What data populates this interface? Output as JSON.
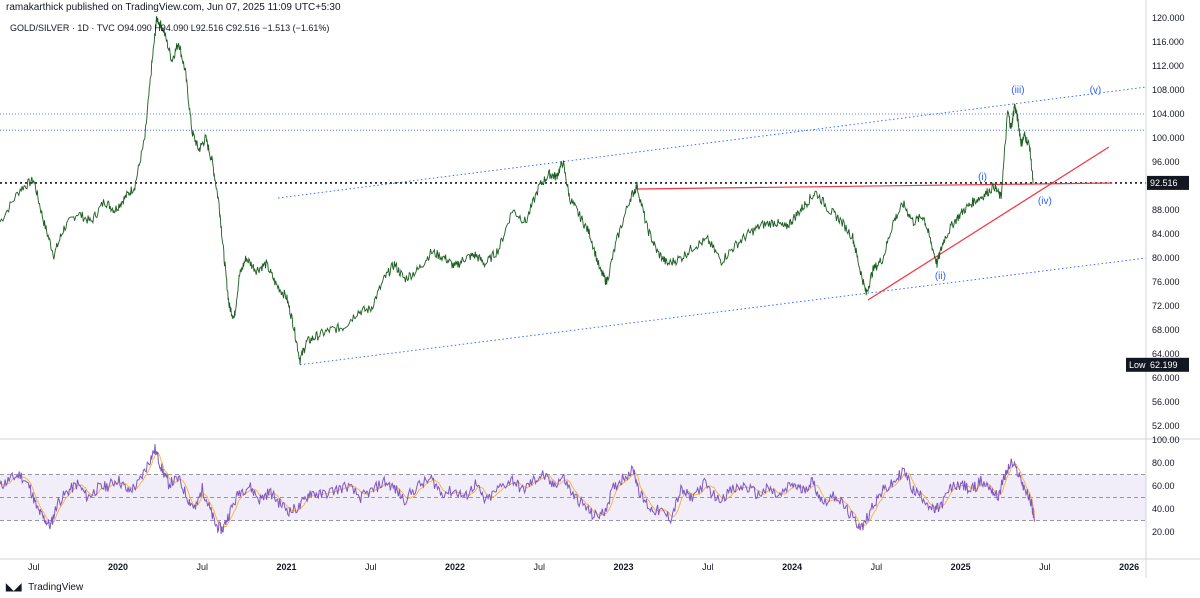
{
  "header": {
    "published": "ramakarthick published on TradingView.com, Jun 07, 2025 11:09 UTC+5:30",
    "legend": "GOLD/SILVER · 1D · TVC  O94.090  H94.090  L92.516  C92.516  −1.513 (−1.61%)"
  },
  "footer": {
    "logo_icon": "tradingview-logo-icon",
    "brand": "TradingView"
  },
  "chart_data": {
    "type": "line",
    "symbol": "GOLD/SILVER",
    "interval": "1D",
    "source": "TVC",
    "ohlc": {
      "open": 94.09,
      "high": 94.09,
      "low": 92.516,
      "close": 92.516,
      "change": -1.513,
      "change_pct": -1.61
    },
    "price_axis": {
      "min": 50,
      "max": 120,
      "ticks": [
        120,
        116,
        112,
        108,
        104,
        100,
        96,
        92,
        88,
        84,
        80,
        76,
        72,
        68,
        64,
        60,
        56,
        52
      ],
      "tick_labels": [
        "120.000",
        "116.000",
        "112.000",
        "108.000",
        "104.000",
        "100.000",
        "96.000",
        "92.000",
        "88.000",
        "84.000",
        "80.000",
        "76.000",
        "72.000",
        "68.000",
        "64.000",
        "60.000",
        "56.000",
        "52.000"
      ]
    },
    "time_axis": {
      "start": 2019.3,
      "end": 2026.1,
      "ticks": [
        2019.5,
        2020.0,
        2020.5,
        2021.0,
        2021.5,
        2022.0,
        2022.5,
        2023.0,
        2023.5,
        2024.0,
        2024.5,
        2025.0,
        2025.5,
        2026.0
      ],
      "labels": [
        "Jul",
        "2020",
        "Jul",
        "2021",
        "Jul",
        "2022",
        "Jul",
        "2023",
        "Jul",
        "2024",
        "Jul",
        "2025",
        "Jul",
        "2026"
      ]
    },
    "last_price": {
      "value": 92.516,
      "label": "92.516"
    },
    "low_marker": {
      "value": 62.199,
      "label": "62.199",
      "text": "Low"
    },
    "price_series": [
      [
        2019.3,
        86.0
      ],
      [
        2019.42,
        91.5
      ],
      [
        2019.5,
        93.0
      ],
      [
        2019.56,
        86.0
      ],
      [
        2019.62,
        80.5
      ],
      [
        2019.68,
        85.0
      ],
      [
        2019.76,
        87.5
      ],
      [
        2019.84,
        86.0
      ],
      [
        2019.92,
        89.5
      ],
      [
        2019.98,
        88.0
      ],
      [
        2020.04,
        90.0
      ],
      [
        2020.1,
        92.0
      ],
      [
        2020.16,
        100.0
      ],
      [
        2020.2,
        112.0
      ],
      [
        2020.23,
        120.0
      ],
      [
        2020.27,
        118.0
      ],
      [
        2020.32,
        113.0
      ],
      [
        2020.36,
        116.0
      ],
      [
        2020.4,
        111.0
      ],
      [
        2020.44,
        101.0
      ],
      [
        2020.48,
        98.0
      ],
      [
        2020.52,
        100.0
      ],
      [
        2020.56,
        96.0
      ],
      [
        2020.6,
        89.0
      ],
      [
        2020.63,
        80.0
      ],
      [
        2020.66,
        72.0
      ],
      [
        2020.69,
        70.0
      ],
      [
        2020.72,
        77.0
      ],
      [
        2020.76,
        80.0
      ],
      [
        2020.82,
        78.0
      ],
      [
        2020.88,
        79.0
      ],
      [
        2020.94,
        75.5
      ],
      [
        2021.0,
        73.5
      ],
      [
        2021.04,
        69.0
      ],
      [
        2021.08,
        63.0
      ],
      [
        2021.12,
        66.0
      ],
      [
        2021.18,
        67.0
      ],
      [
        2021.26,
        68.0
      ],
      [
        2021.34,
        68.5
      ],
      [
        2021.42,
        71.0
      ],
      [
        2021.5,
        71.5
      ],
      [
        2021.58,
        76.5
      ],
      [
        2021.64,
        79.0
      ],
      [
        2021.7,
        76.5
      ],
      [
        2021.78,
        78.0
      ],
      [
        2021.86,
        81.0
      ],
      [
        2021.94,
        80.0
      ],
      [
        2022.0,
        78.5
      ],
      [
        2022.06,
        80.0
      ],
      [
        2022.12,
        80.5
      ],
      [
        2022.18,
        79.0
      ],
      [
        2022.26,
        81.5
      ],
      [
        2022.34,
        88.0
      ],
      [
        2022.42,
        86.0
      ],
      [
        2022.5,
        92.0
      ],
      [
        2022.56,
        94.0
      ],
      [
        2022.6,
        93.5
      ],
      [
        2022.64,
        96.0
      ],
      [
        2022.68,
        90.0
      ],
      [
        2022.74,
        87.0
      ],
      [
        2022.8,
        84.0
      ],
      [
        2022.86,
        78.0
      ],
      [
        2022.9,
        76.0
      ],
      [
        2022.96,
        83.0
      ],
      [
        2023.04,
        90.0
      ],
      [
        2023.08,
        92.0
      ],
      [
        2023.14,
        85.0
      ],
      [
        2023.2,
        81.0
      ],
      [
        2023.26,
        79.0
      ],
      [
        2023.34,
        80.0
      ],
      [
        2023.42,
        82.0
      ],
      [
        2023.5,
        83.0
      ],
      [
        2023.58,
        79.5
      ],
      [
        2023.66,
        82.0
      ],
      [
        2023.74,
        84.0
      ],
      [
        2023.82,
        85.5
      ],
      [
        2023.9,
        86.0
      ],
      [
        2023.96,
        85.0
      ],
      [
        2024.02,
        87.0
      ],
      [
        2024.08,
        89.0
      ],
      [
        2024.14,
        91.0
      ],
      [
        2024.22,
        88.0
      ],
      [
        2024.28,
        86.5
      ],
      [
        2024.36,
        83.5
      ],
      [
        2024.4,
        78.5
      ],
      [
        2024.44,
        74.0
      ],
      [
        2024.48,
        78.0
      ],
      [
        2024.54,
        80.0
      ],
      [
        2024.6,
        86.0
      ],
      [
        2024.66,
        89.0
      ],
      [
        2024.72,
        86.0
      ],
      [
        2024.78,
        87.0
      ],
      [
        2024.82,
        83.0
      ],
      [
        2024.86,
        79.0
      ],
      [
        2024.9,
        83.0
      ],
      [
        2024.96,
        86.0
      ],
      [
        2025.02,
        88.0
      ],
      [
        2025.08,
        89.5
      ],
      [
        2025.14,
        90.5
      ],
      [
        2025.2,
        92.0
      ],
      [
        2025.24,
        90.0
      ],
      [
        2025.28,
        104.5
      ],
      [
        2025.3,
        101.5
      ],
      [
        2025.32,
        105.5
      ],
      [
        2025.34,
        103.0
      ],
      [
        2025.36,
        99.0
      ],
      [
        2025.38,
        100.5
      ],
      [
        2025.41,
        98.5
      ],
      [
        2025.43,
        92.5
      ]
    ],
    "annotations": [
      {
        "text": "(i)",
        "x": 2025.13,
        "y": 93.0
      },
      {
        "text": "(ii)",
        "x": 2024.88,
        "y": 76.5
      },
      {
        "text": "(iii)",
        "x": 2025.34,
        "y": 107.5
      },
      {
        "text": "(iv)",
        "x": 2025.5,
        "y": 89.0
      },
      {
        "text": "(v)",
        "x": 2025.8,
        "y": 107.5
      }
    ],
    "trendlines": [
      {
        "color": "#2962ff",
        "style": "dotted",
        "points": [
          [
            2021.08,
            62.2
          ],
          [
            2026.1,
            80.0
          ]
        ]
      },
      {
        "color": "#2962ff",
        "style": "dotted",
        "points": [
          [
            2020.95,
            90.0
          ],
          [
            2026.1,
            108.5
          ]
        ]
      },
      {
        "color": "#f23645",
        "style": "solid",
        "points": [
          [
            2023.08,
            91.5
          ],
          [
            2025.9,
            92.5
          ]
        ]
      },
      {
        "color": "#f23645",
        "style": "solid",
        "points": [
          [
            2024.45,
            73.0
          ],
          [
            2025.88,
            98.5
          ]
        ]
      }
    ],
    "hlines": [
      {
        "value": 92.516,
        "color": "#131722",
        "style": "dotted"
      },
      {
        "value": 101.3,
        "color": "#2962ff",
        "style": "dotted"
      },
      {
        "value": 104.0,
        "color": "#2962ff",
        "style": "dotted"
      }
    ],
    "rsi": {
      "axis": {
        "ticks": [
          100,
          80,
          60,
          40,
          20
        ],
        "tick_labels": [
          "100.00",
          "80.00",
          "60.00",
          "40.00",
          "20.00"
        ]
      },
      "band": {
        "upper": 70,
        "lower": 30,
        "mid": 50
      },
      "series": [
        [
          2019.3,
          60
        ],
        [
          2019.36,
          66
        ],
        [
          2019.42,
          70
        ],
        [
          2019.48,
          58
        ],
        [
          2019.52,
          40
        ],
        [
          2019.56,
          32
        ],
        [
          2019.6,
          25
        ],
        [
          2019.64,
          45
        ],
        [
          2019.7,
          55
        ],
        [
          2019.76,
          62
        ],
        [
          2019.82,
          50
        ],
        [
          2019.88,
          58
        ],
        [
          2019.94,
          60
        ],
        [
          2020.0,
          66
        ],
        [
          2020.06,
          55
        ],
        [
          2020.12,
          62
        ],
        [
          2020.18,
          80
        ],
        [
          2020.22,
          92
        ],
        [
          2020.26,
          75
        ],
        [
          2020.3,
          62
        ],
        [
          2020.36,
          66
        ],
        [
          2020.42,
          48
        ],
        [
          2020.46,
          40
        ],
        [
          2020.5,
          58
        ],
        [
          2020.54,
          42
        ],
        [
          2020.58,
          26
        ],
        [
          2020.62,
          22
        ],
        [
          2020.66,
          36
        ],
        [
          2020.72,
          55
        ],
        [
          2020.78,
          60
        ],
        [
          2020.84,
          48
        ],
        [
          2020.9,
          55
        ],
        [
          2020.96,
          45
        ],
        [
          2021.02,
          38
        ],
        [
          2021.08,
          42
        ],
        [
          2021.14,
          55
        ],
        [
          2021.2,
          52
        ],
        [
          2021.28,
          56
        ],
        [
          2021.36,
          60
        ],
        [
          2021.44,
          50
        ],
        [
          2021.5,
          55
        ],
        [
          2021.58,
          64
        ],
        [
          2021.64,
          58
        ],
        [
          2021.7,
          48
        ],
        [
          2021.78,
          60
        ],
        [
          2021.86,
          66
        ],
        [
          2021.92,
          54
        ],
        [
          2022.0,
          56
        ],
        [
          2022.06,
          50
        ],
        [
          2022.12,
          62
        ],
        [
          2022.18,
          46
        ],
        [
          2022.26,
          58
        ],
        [
          2022.34,
          66
        ],
        [
          2022.4,
          56
        ],
        [
          2022.46,
          64
        ],
        [
          2022.52,
          70
        ],
        [
          2022.58,
          60
        ],
        [
          2022.64,
          68
        ],
        [
          2022.7,
          52
        ],
        [
          2022.76,
          44
        ],
        [
          2022.82,
          34
        ],
        [
          2022.88,
          36
        ],
        [
          2022.94,
          58
        ],
        [
          2023.0,
          68
        ],
        [
          2023.06,
          74
        ],
        [
          2023.1,
          52
        ],
        [
          2023.16,
          40
        ],
        [
          2023.22,
          38
        ],
        [
          2023.28,
          32
        ],
        [
          2023.34,
          56
        ],
        [
          2023.4,
          50
        ],
        [
          2023.48,
          62
        ],
        [
          2023.56,
          48
        ],
        [
          2023.64,
          56
        ],
        [
          2023.72,
          60
        ],
        [
          2023.8,
          52
        ],
        [
          2023.86,
          58
        ],
        [
          2023.92,
          50
        ],
        [
          2024.0,
          62
        ],
        [
          2024.06,
          56
        ],
        [
          2024.12,
          64
        ],
        [
          2024.18,
          46
        ],
        [
          2024.26,
          52
        ],
        [
          2024.32,
          40
        ],
        [
          2024.38,
          28
        ],
        [
          2024.42,
          24
        ],
        [
          2024.48,
          44
        ],
        [
          2024.54,
          56
        ],
        [
          2024.6,
          62
        ],
        [
          2024.66,
          74
        ],
        [
          2024.72,
          56
        ],
        [
          2024.78,
          50
        ],
        [
          2024.84,
          38
        ],
        [
          2024.88,
          42
        ],
        [
          2024.94,
          58
        ],
        [
          2025.0,
          62
        ],
        [
          2025.06,
          56
        ],
        [
          2025.12,
          64
        ],
        [
          2025.18,
          58
        ],
        [
          2025.22,
          50
        ],
        [
          2025.26,
          68
        ],
        [
          2025.3,
          80
        ],
        [
          2025.34,
          72
        ],
        [
          2025.38,
          58
        ],
        [
          2025.42,
          45
        ],
        [
          2025.44,
          30
        ]
      ]
    }
  }
}
